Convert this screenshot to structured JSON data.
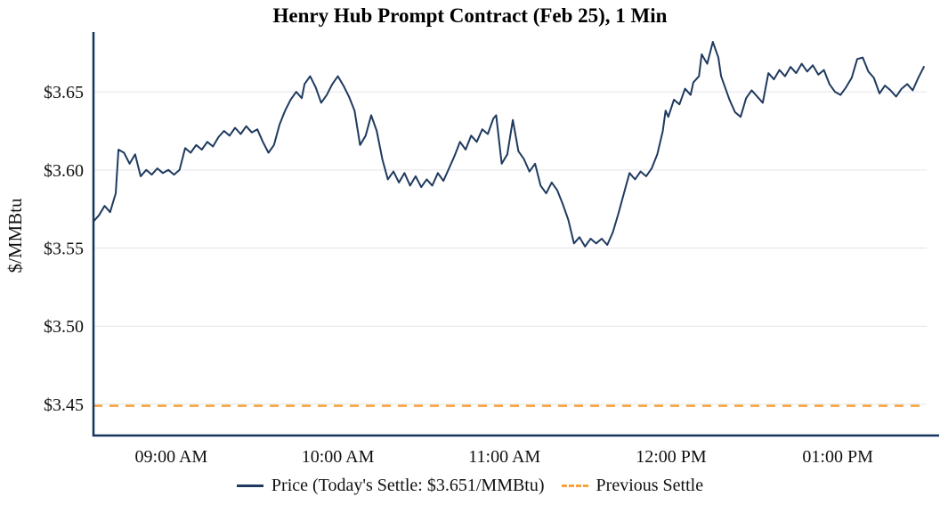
{
  "chart_data": {
    "type": "line",
    "title": "Henry Hub Prompt Contract (Feb 25), 1 Min",
    "xlabel": "",
    "ylabel": "$/MMBtu",
    "x_unit": "minutes_after_midnight",
    "x_range": [
      512,
      812
    ],
    "y_range": [
      3.43,
      3.686
    ],
    "grid": "horizontal",
    "legend_position": "bottom",
    "today_settle": 3.651,
    "previous_settle": 3.449,
    "colors": {
      "price": "#1f3a5f",
      "settle": "#f9a23c",
      "grid": "#e4e4ea",
      "axis": "#16355e",
      "text": "#111111",
      "background": "#ffffff"
    },
    "x_ticks": [
      {
        "t": 540,
        "label": "09:00 AM"
      },
      {
        "t": 600,
        "label": "10:00 AM"
      },
      {
        "t": 660,
        "label": "11:00 AM"
      },
      {
        "t": 720,
        "label": "12:00 PM"
      },
      {
        "t": 780,
        "label": "01:00 PM"
      }
    ],
    "y_ticks": [
      {
        "v": 3.45,
        "label": "$3.45"
      },
      {
        "v": 3.5,
        "label": "$3.50"
      },
      {
        "v": 3.55,
        "label": "$3.55"
      },
      {
        "v": 3.6,
        "label": "$3.60"
      },
      {
        "v": 3.65,
        "label": "$3.65"
      }
    ],
    "series": [
      {
        "name": "Price (Today's Settle: $3.651/MMBtu)",
        "color": "#1f3a5f",
        "style": "solid",
        "points": [
          [
            512,
            3.567
          ],
          [
            514,
            3.571
          ],
          [
            516,
            3.577
          ],
          [
            518,
            3.573
          ],
          [
            520,
            3.585
          ],
          [
            521,
            3.613
          ],
          [
            523,
            3.611
          ],
          [
            525,
            3.604
          ],
          [
            527,
            3.61
          ],
          [
            529,
            3.596
          ],
          [
            531,
            3.6
          ],
          [
            533,
            3.597
          ],
          [
            535,
            3.601
          ],
          [
            537,
            3.598
          ],
          [
            539,
            3.6
          ],
          [
            541,
            3.597
          ],
          [
            543,
            3.6
          ],
          [
            545,
            3.614
          ],
          [
            547,
            3.611
          ],
          [
            549,
            3.616
          ],
          [
            551,
            3.613
          ],
          [
            553,
            3.618
          ],
          [
            555,
            3.615
          ],
          [
            557,
            3.621
          ],
          [
            559,
            3.625
          ],
          [
            561,
            3.622
          ],
          [
            563,
            3.627
          ],
          [
            565,
            3.623
          ],
          [
            567,
            3.628
          ],
          [
            569,
            3.624
          ],
          [
            571,
            3.626
          ],
          [
            573,
            3.618
          ],
          [
            575,
            3.611
          ],
          [
            577,
            3.616
          ],
          [
            579,
            3.629
          ],
          [
            581,
            3.638
          ],
          [
            583,
            3.645
          ],
          [
            585,
            3.65
          ],
          [
            587,
            3.646
          ],
          [
            588,
            3.655
          ],
          [
            590,
            3.66
          ],
          [
            592,
            3.653
          ],
          [
            594,
            3.643
          ],
          [
            596,
            3.648
          ],
          [
            598,
            3.655
          ],
          [
            600,
            3.66
          ],
          [
            602,
            3.654
          ],
          [
            604,
            3.647
          ],
          [
            606,
            3.638
          ],
          [
            608,
            3.616
          ],
          [
            610,
            3.622
          ],
          [
            612,
            3.635
          ],
          [
            614,
            3.625
          ],
          [
            616,
            3.607
          ],
          [
            618,
            3.594
          ],
          [
            620,
            3.599
          ],
          [
            622,
            3.592
          ],
          [
            624,
            3.598
          ],
          [
            626,
            3.59
          ],
          [
            628,
            3.596
          ],
          [
            630,
            3.589
          ],
          [
            632,
            3.594
          ],
          [
            634,
            3.59
          ],
          [
            636,
            3.598
          ],
          [
            638,
            3.593
          ],
          [
            640,
            3.601
          ],
          [
            642,
            3.609
          ],
          [
            644,
            3.618
          ],
          [
            646,
            3.613
          ],
          [
            648,
            3.622
          ],
          [
            650,
            3.618
          ],
          [
            652,
            3.626
          ],
          [
            654,
            3.623
          ],
          [
            656,
            3.633
          ],
          [
            657,
            3.635
          ],
          [
            659,
            3.604
          ],
          [
            661,
            3.61
          ],
          [
            663,
            3.632
          ],
          [
            665,
            3.612
          ],
          [
            667,
            3.607
          ],
          [
            669,
            3.599
          ],
          [
            671,
            3.604
          ],
          [
            673,
            3.59
          ],
          [
            675,
            3.585
          ],
          [
            677,
            3.592
          ],
          [
            679,
            3.587
          ],
          [
            681,
            3.578
          ],
          [
            683,
            3.568
          ],
          [
            685,
            3.553
          ],
          [
            687,
            3.557
          ],
          [
            689,
            3.551
          ],
          [
            691,
            3.556
          ],
          [
            693,
            3.553
          ],
          [
            695,
            3.556
          ],
          [
            697,
            3.552
          ],
          [
            699,
            3.56
          ],
          [
            701,
            3.572
          ],
          [
            703,
            3.585
          ],
          [
            705,
            3.598
          ],
          [
            707,
            3.594
          ],
          [
            709,
            3.599
          ],
          [
            711,
            3.596
          ],
          [
            713,
            3.601
          ],
          [
            715,
            3.61
          ],
          [
            717,
            3.625
          ],
          [
            718,
            3.638
          ],
          [
            719,
            3.634
          ],
          [
            721,
            3.645
          ],
          [
            723,
            3.642
          ],
          [
            725,
            3.652
          ],
          [
            727,
            3.648
          ],
          [
            728,
            3.656
          ],
          [
            730,
            3.66
          ],
          [
            731,
            3.674
          ],
          [
            733,
            3.668
          ],
          [
            735,
            3.682
          ],
          [
            737,
            3.672
          ],
          [
            738,
            3.66
          ],
          [
            741,
            3.645
          ],
          [
            743,
            3.637
          ],
          [
            745,
            3.634
          ],
          [
            747,
            3.646
          ],
          [
            749,
            3.651
          ],
          [
            751,
            3.647
          ],
          [
            753,
            3.643
          ],
          [
            755,
            3.662
          ],
          [
            757,
            3.658
          ],
          [
            759,
            3.664
          ],
          [
            761,
            3.66
          ],
          [
            763,
            3.666
          ],
          [
            765,
            3.662
          ],
          [
            767,
            3.668
          ],
          [
            769,
            3.663
          ],
          [
            771,
            3.667
          ],
          [
            773,
            3.661
          ],
          [
            775,
            3.664
          ],
          [
            777,
            3.655
          ],
          [
            779,
            3.65
          ],
          [
            781,
            3.648
          ],
          [
            783,
            3.653
          ],
          [
            785,
            3.659
          ],
          [
            787,
            3.671
          ],
          [
            789,
            3.672
          ],
          [
            791,
            3.663
          ],
          [
            793,
            3.659
          ],
          [
            795,
            3.649
          ],
          [
            797,
            3.654
          ],
          [
            799,
            3.651
          ],
          [
            801,
            3.647
          ],
          [
            803,
            3.652
          ],
          [
            805,
            3.655
          ],
          [
            807,
            3.651
          ],
          [
            809,
            3.659
          ],
          [
            811,
            3.666
          ]
        ]
      },
      {
        "name": "Previous Settle",
        "color": "#f9a23c",
        "style": "dashed",
        "value": 3.449
      }
    ]
  }
}
